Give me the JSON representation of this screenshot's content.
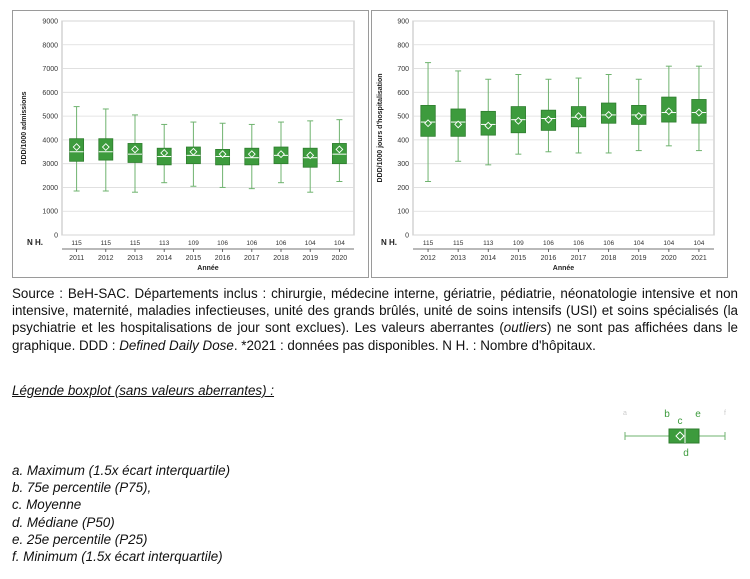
{
  "chart_data": [
    {
      "type": "boxplot",
      "ylabel": "DDD/1000 admissions",
      "xlabel": "Année",
      "ylim": [
        0,
        9000
      ],
      "yticks": [
        0,
        1000,
        2000,
        3000,
        4000,
        5000,
        6000,
        7000,
        8000,
        9000
      ],
      "grid": true,
      "n_label": "N H.",
      "categories": [
        "2011",
        "2012",
        "2013",
        "2014",
        "2015",
        "2016",
        "2017",
        "2018",
        "2019",
        "2020"
      ],
      "n": [
        "115",
        "115",
        "115",
        "113",
        "109",
        "106",
        "106",
        "106",
        "104",
        "104"
      ],
      "min": [
        1850,
        1850,
        1800,
        2200,
        2050,
        2000,
        1950,
        2200,
        1800,
        2250
      ],
      "q1": [
        3100,
        3150,
        3050,
        2950,
        3000,
        2950,
        2950,
        3000,
        2850,
        3000
      ],
      "median": [
        3500,
        3500,
        3400,
        3300,
        3350,
        3300,
        3250,
        3350,
        3250,
        3400
      ],
      "q3": [
        4050,
        4050,
        3850,
        3650,
        3700,
        3600,
        3650,
        3700,
        3650,
        3850
      ],
      "max": [
        5400,
        5300,
        5050,
        4650,
        4750,
        4700,
        4650,
        4750,
        4800,
        4850
      ],
      "mean": [
        3700,
        3700,
        3600,
        3450,
        3500,
        3400,
        3400,
        3400,
        3350,
        3600
      ]
    },
    {
      "type": "boxplot",
      "ylabel": "DDD/1000 jours d'hospitalisation",
      "xlabel": "Année",
      "ylim": [
        0,
        900
      ],
      "yticks": [
        0,
        100,
        200,
        300,
        400,
        500,
        600,
        700,
        800,
        900
      ],
      "grid": true,
      "n_label": "N H.",
      "categories": [
        "2012",
        "2013",
        "2014",
        "2015",
        "2016",
        "2017",
        "2018",
        "2019",
        "2020",
        "2021"
      ],
      "n": [
        "115",
        "115",
        "113",
        "109",
        "106",
        "106",
        "106",
        "104",
        "104",
        "104"
      ],
      "min": [
        225,
        310,
        295,
        340,
        350,
        345,
        345,
        355,
        375,
        355
      ],
      "q1": [
        415,
        415,
        420,
        430,
        440,
        455,
        470,
        465,
        475,
        470
      ],
      "median": [
        475,
        475,
        465,
        485,
        490,
        495,
        505,
        505,
        515,
        515
      ],
      "q3": [
        545,
        530,
        520,
        540,
        525,
        540,
        555,
        545,
        580,
        570
      ],
      "max": [
        725,
        690,
        655,
        675,
        655,
        660,
        675,
        655,
        710,
        710
      ],
      "mean": [
        470,
        465,
        460,
        480,
        485,
        500,
        505,
        500,
        520,
        515
      ]
    }
  ],
  "source_paragraph": {
    "part1": "Source : BeH-SAC. Départements inclus : chirurgie, médecine interne, gériatrie, pédiatrie, néonatologie intensive et non intensive, maternité, maladies infectieuses, unité des grands brûlés, unité de soins intensifs (USI) et soins spécialisés (la psychiatrie et les hospitalisations de jour sont exclues). Les valeurs aberrantes (",
    "outliers": "outliers",
    "part2": ") ne sont pas affichées dans le graphique. DDD : ",
    "ddd": "Defined Daily Dose",
    "part3": ". *2021 : données pas disponibles. N H. : Nombre d'hôpitaux."
  },
  "legend": {
    "title": "Légende boxplot (sans valeurs aberrantes)  :",
    "items": [
      "a. Maximum (1.5x écart interquartile)",
      "b. 75e percentile (P75),",
      "c. Moyenne",
      "d. Médiane (P50)",
      "e. 25e percentile (P25)",
      "f. Minimum (1.5x écart interquartile)"
    ],
    "markers": {
      "a": "a",
      "b": "b",
      "c": "c",
      "d": "d",
      "e": "e",
      "f": "f"
    }
  },
  "colors": {
    "box": "#3d9b3d",
    "box_edge": "#2e7d2e",
    "whisker": "#6fb36f",
    "median": "#ffffff",
    "grid": "#dcdcdc",
    "axis": "#444444"
  }
}
